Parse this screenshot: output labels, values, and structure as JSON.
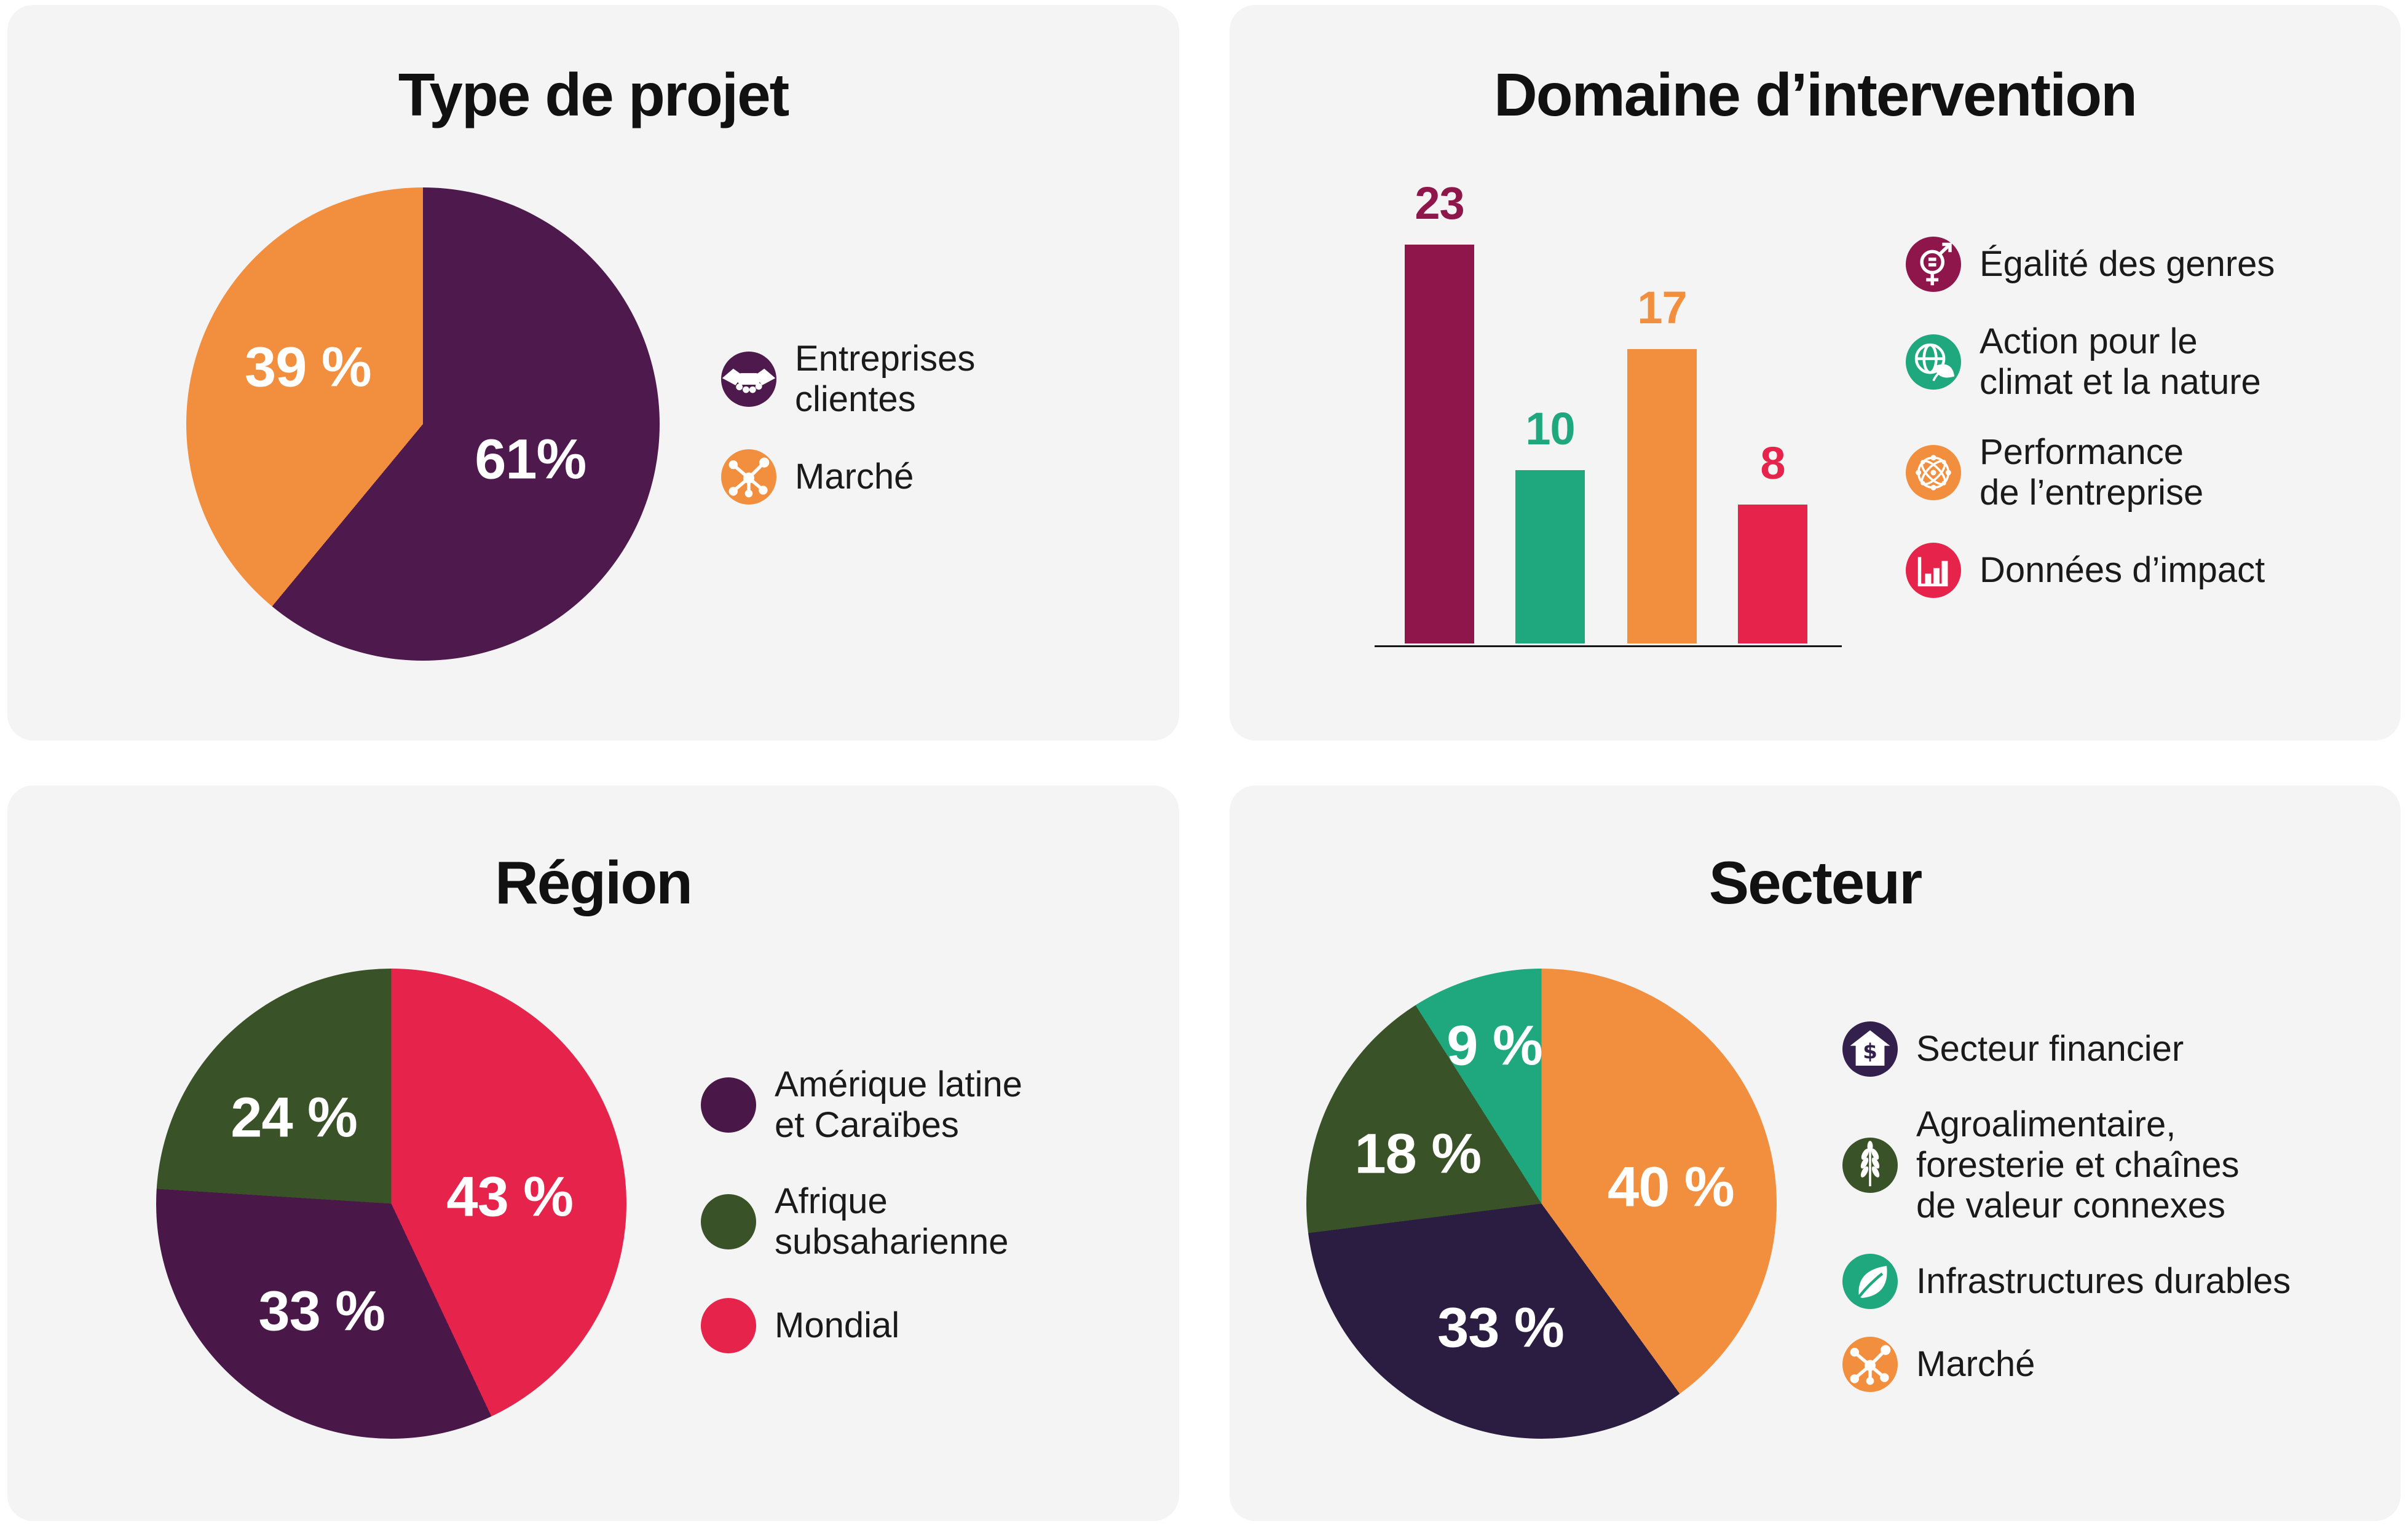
{
  "colors": {
    "page_bg": "#ffffff",
    "panel_bg": "#f4f4f4",
    "title_text": "#111111",
    "legend_text": "#1a1a1a",
    "pie_label_text": "#ffffff",
    "axis_line": "#161616",
    "plum": "#4e194c",
    "orange": "#f28f3f",
    "berry": "#8f164b",
    "green": "#1fa87d",
    "crimson": "#e6234a",
    "forest_green": "#3a5228",
    "dark_aubergine": "#2b1c42",
    "icon_navy": "#33204c",
    "region_plum": "#4a1848"
  },
  "panels": [
    {
      "title": "Type de projet",
      "legend": [
        {
          "icon": "handshake-icon",
          "circle_color": "#4e194c",
          "lines": [
            "Entreprises",
            "clientes"
          ]
        },
        {
          "icon": "network-icon",
          "circle_color": "#f28f3f",
          "lines": [
            "Marché"
          ]
        }
      ]
    },
    {
      "title": "Domaine d’intervention",
      "legend": [
        {
          "icon": "gender-equality-icon",
          "circle_color": "#8f164b",
          "lines": [
            "Égalité des genres"
          ]
        },
        {
          "icon": "globe-leaf-icon",
          "circle_color": "#1fa87d",
          "lines": [
            "Action pour le",
            "climat et la nature"
          ]
        },
        {
          "icon": "globe-network-icon",
          "circle_color": "#f28f3f",
          "lines": [
            "Performance",
            "de l’entreprise"
          ]
        },
        {
          "icon": "bar-chart-icon",
          "circle_color": "#e6234a",
          "lines": [
            "Données d’impact"
          ]
        }
      ]
    },
    {
      "title": "Région",
      "legend": [
        {
          "icon": "dot",
          "circle_color": "#4a1848",
          "lines": [
            "Amérique latine",
            "et Caraïbes"
          ]
        },
        {
          "icon": "dot",
          "circle_color": "#3a5228",
          "lines": [
            "Afrique",
            "subsaharienne"
          ]
        },
        {
          "icon": "dot",
          "circle_color": "#e6234a",
          "lines": [
            "Mondial"
          ]
        }
      ]
    },
    {
      "title": "Secteur",
      "legend": [
        {
          "icon": "bank-dollar-icon",
          "circle_color": "#33204c",
          "lines": [
            "Secteur financier"
          ]
        },
        {
          "icon": "wheat-icon",
          "circle_color": "#3a5228",
          "lines": [
            "Agroalimentaire,",
            "foresterie et chaînes",
            "de valeur connexes"
          ]
        },
        {
          "icon": "leaf-icon",
          "circle_color": "#1fa87d",
          "lines": [
            "Infrastructures durables"
          ]
        },
        {
          "icon": "network-icon",
          "circle_color": "#f28f3f",
          "lines": [
            "Marché"
          ]
        }
      ]
    }
  ],
  "chart_data": [
    {
      "type": "pie",
      "title": "Type de projet",
      "legend_position": "right",
      "slices": [
        {
          "label": "Entreprises clientes",
          "value": 61,
          "display": "61%",
          "color": "#4e194c"
        },
        {
          "label": "Marché",
          "value": 39,
          "display": "39 %",
          "color": "#f28f3f"
        }
      ]
    },
    {
      "type": "bar",
      "title": "Domaine d’intervention",
      "categories": [
        "Égalité des genres",
        "Action pour le climat et la nature",
        "Performance de l’entreprise",
        "Données d’impact"
      ],
      "values": [
        23,
        10,
        17,
        8
      ],
      "colors": [
        "#8f164b",
        "#1fa87d",
        "#f28f3f",
        "#e6234a"
      ],
      "ylim": [
        0,
        23
      ],
      "gridlines": false,
      "legend_position": "right"
    },
    {
      "type": "pie",
      "title": "Région",
      "legend_position": "right",
      "slices": [
        {
          "label": "Mondial",
          "value": 43,
          "display": "43 %",
          "color": "#e6234a"
        },
        {
          "label": "Amérique latine et Caraïbes",
          "value": 33,
          "display": "33 %",
          "color": "#4a1848"
        },
        {
          "label": "Afrique subsaharienne",
          "value": 24,
          "display": "24 %",
          "color": "#3a5228"
        }
      ]
    },
    {
      "type": "pie",
      "title": "Secteur",
      "legend_position": "right",
      "slices": [
        {
          "label": "Marché",
          "value": 40,
          "display": "40 %",
          "color": "#f28f3f"
        },
        {
          "label": "Secteur financier",
          "value": 33,
          "display": "33 %",
          "color": "#2b1c42"
        },
        {
          "label": "Agroalimentaire, foresterie et chaînes de valeur connexes",
          "value": 18,
          "display": "18 %",
          "color": "#3a5228"
        },
        {
          "label": "Infrastructures durables",
          "value": 9,
          "display": "9 %",
          "color": "#1fa87d"
        }
      ]
    }
  ]
}
